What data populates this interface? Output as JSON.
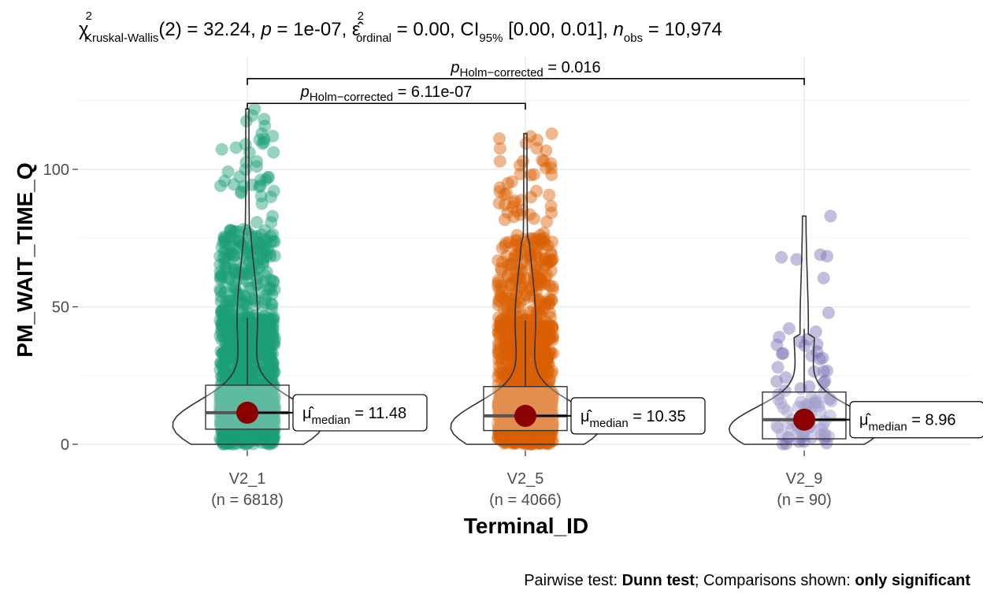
{
  "chart_data": {
    "type": "violin-box-jitter",
    "title": {
      "stat_symbol": "χ",
      "stat_sup": "2",
      "stat_sub": "Kruskal-Wallis",
      "stat_value": "(2) = 32.24, ",
      "p_symbol": "p",
      "p_value": " = 1e-07, ",
      "eff_symbol": "ε̂",
      "eff_sup": "2",
      "eff_sub": "ordinal",
      "eff_value": " = 0.00, CI",
      "ci_sub": "95%",
      "ci_value": " [0.00, 0.01], ",
      "n_symbol": "n",
      "n_sub": "obs",
      "n_value": " = 10,974"
    },
    "xlabel": "Terminal_ID",
    "ylabel": "PM_WAIT_TIME_Q",
    "ylim": [
      -2,
      125
    ],
    "yticks": [
      0,
      50,
      100
    ],
    "grid": true,
    "groups": [
      {
        "id": "V2_1",
        "n_label": "(n = 6818)",
        "n": 6818,
        "color": "#1b9e77",
        "median": 11.48,
        "median_label": "= 11.48",
        "q1": 5.5,
        "q3": 21.5,
        "whisker_low": 0,
        "whisker_high": 46,
        "max": 122,
        "fence": 78
      },
      {
        "id": "V2_5",
        "n_label": "(n = 4066)",
        "n": 4066,
        "color": "#d95f02",
        "median": 10.35,
        "median_label": "= 10.35",
        "q1": 5,
        "q3": 21,
        "whisker_low": 0,
        "whisker_high": 45,
        "max": 113,
        "fence": 75
      },
      {
        "id": "V2_9",
        "n_label": "(n = 90)",
        "n": 90,
        "color": "#7570b3",
        "median": 8.96,
        "median_label": "= 8.96",
        "q1": 2,
        "q3": 19,
        "whisker_low": 0,
        "whisker_high": 42,
        "max": 83,
        "fence": 40
      }
    ],
    "median_symbol": "μ̂",
    "median_sub": "median",
    "comparisons": [
      {
        "from": "V2_1",
        "to": "V2_5",
        "p_symbol": "p",
        "p_sub": "Holm−corrected",
        "p_text": " = 6.11e-07",
        "y": 124
      },
      {
        "from": "V2_1",
        "to": "V2_9",
        "p_symbol": "p",
        "p_sub": "Holm−corrected",
        "p_text": " = 0.016",
        "y": 133
      }
    ],
    "caption": {
      "prefix": "Pairwise test: ",
      "test": "Dunn test",
      "mid": "; Comparisons shown: ",
      "shown": "only significant"
    }
  }
}
